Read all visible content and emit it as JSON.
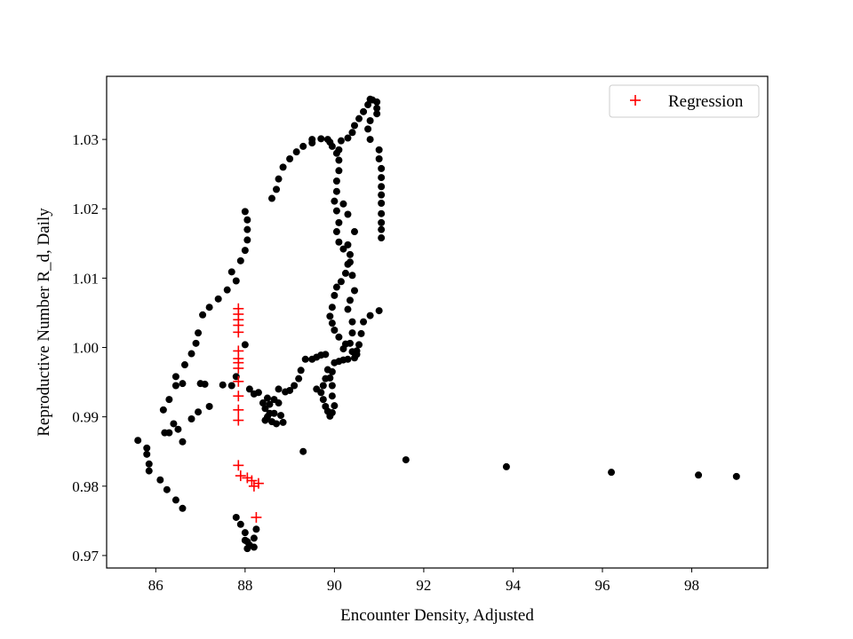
{
  "chart_data": {
    "type": "scatter",
    "xlabel": "Encounter Density, Adjusted",
    "ylabel": "Reproductive Number R_d, Daily",
    "xlim": [
      84.9,
      99.7
    ],
    "ylim": [
      0.9682,
      1.0391
    ],
    "x_ticks": [
      {
        "value": 86,
        "label": "86"
      },
      {
        "value": 88,
        "label": "88"
      },
      {
        "value": 90,
        "label": "90"
      },
      {
        "value": 92,
        "label": "92"
      },
      {
        "value": 94,
        "label": "94"
      },
      {
        "value": 96,
        "label": "96"
      },
      {
        "value": 98,
        "label": "98"
      }
    ],
    "y_ticks": [
      {
        "value": 0.97,
        "label": "0.97"
      },
      {
        "value": 0.98,
        "label": "0.98"
      },
      {
        "value": 0.99,
        "label": "0.99"
      },
      {
        "value": 1.0,
        "label": "1.00"
      },
      {
        "value": 1.01,
        "label": "1.01"
      },
      {
        "value": 1.02,
        "label": "1.02"
      },
      {
        "value": 1.03,
        "label": "1.03"
      }
    ],
    "grid": false,
    "legend_position": "top-right",
    "series": [
      {
        "marker": "dot",
        "color": "#000000",
        "points": [
          [
            85.6,
            0.9866
          ],
          [
            85.8,
            0.9855
          ],
          [
            85.8,
            0.9846
          ],
          [
            85.85,
            0.9832
          ],
          [
            85.85,
            0.9822
          ],
          [
            86.1,
            0.9809
          ],
          [
            86.25,
            0.9795
          ],
          [
            86.45,
            0.978
          ],
          [
            86.6,
            0.9768
          ],
          [
            86.6,
            0.9864
          ],
          [
            86.5,
            0.9882
          ],
          [
            86.4,
            0.989
          ],
          [
            86.3,
            0.9877
          ],
          [
            86.2,
            0.9877
          ],
          [
            86.17,
            0.991
          ],
          [
            86.3,
            0.9925
          ],
          [
            86.45,
            0.9945
          ],
          [
            86.6,
            0.9948
          ],
          [
            86.45,
            0.9958
          ],
          [
            86.65,
            0.9975
          ],
          [
            86.8,
            0.9991
          ],
          [
            86.9,
            1.0006
          ],
          [
            86.95,
            1.0021
          ],
          [
            87.05,
            1.0047
          ],
          [
            87.2,
            1.0058
          ],
          [
            87.4,
            1.007
          ],
          [
            87.6,
            1.0083
          ],
          [
            87.7,
            1.0109
          ],
          [
            87.8,
            1.0096
          ],
          [
            87.9,
            1.0125
          ],
          [
            88.0,
            1.014
          ],
          [
            88.05,
            1.0155
          ],
          [
            88.05,
            1.017
          ],
          [
            88.05,
            1.0184
          ],
          [
            88.0,
            1.0196
          ],
          [
            86.8,
            0.9897
          ],
          [
            86.95,
            0.9907
          ],
          [
            87.2,
            0.9915
          ],
          [
            87.0,
            0.9948
          ],
          [
            87.1,
            0.9947
          ],
          [
            87.5,
            0.9946
          ],
          [
            87.7,
            0.9945
          ],
          [
            87.8,
            0.9958
          ],
          [
            88.0,
            1.0004
          ],
          [
            88.1,
            0.994
          ],
          [
            88.2,
            0.9933
          ],
          [
            88.3,
            0.9935
          ],
          [
            88.4,
            0.992
          ],
          [
            88.45,
            0.9912
          ],
          [
            88.5,
            0.99
          ],
          [
            88.45,
            0.9895
          ],
          [
            88.55,
            0.9905
          ],
          [
            88.6,
            0.9893
          ],
          [
            88.65,
            0.9905
          ],
          [
            88.7,
            0.989
          ],
          [
            88.8,
            0.9902
          ],
          [
            88.85,
            0.9892
          ],
          [
            88.75,
            0.992
          ],
          [
            88.65,
            0.9925
          ],
          [
            88.55,
            0.9918
          ],
          [
            88.5,
            0.9927
          ],
          [
            88.75,
            0.994
          ],
          [
            88.9,
            0.9936
          ],
          [
            89.0,
            0.9938
          ],
          [
            89.1,
            0.9945
          ],
          [
            89.2,
            0.9955
          ],
          [
            89.25,
            0.9967
          ],
          [
            89.35,
            0.9983
          ],
          [
            89.5,
            0.9983
          ],
          [
            89.6,
            0.9986
          ],
          [
            89.7,
            0.9989
          ],
          [
            89.8,
            0.999
          ],
          [
            89.85,
            0.9968
          ],
          [
            89.8,
            0.9955
          ],
          [
            89.75,
            0.9945
          ],
          [
            89.7,
            0.9935
          ],
          [
            89.75,
            0.9925
          ],
          [
            89.8,
            0.9915
          ],
          [
            89.85,
            0.9908
          ],
          [
            89.9,
            0.9901
          ],
          [
            89.95,
            0.9906
          ],
          [
            90.0,
            0.9916
          ],
          [
            89.95,
            0.993
          ],
          [
            89.95,
            0.9945
          ],
          [
            89.6,
            0.994
          ],
          [
            89.9,
            0.9956
          ],
          [
            89.95,
            0.9965
          ],
          [
            90.0,
            0.9978
          ],
          [
            90.1,
            0.998
          ],
          [
            90.2,
            0.9982
          ],
          [
            90.3,
            0.9983
          ],
          [
            90.45,
            0.9985
          ],
          [
            90.5,
            0.999
          ],
          [
            90.4,
            0.9994
          ],
          [
            90.35,
            1.0006
          ],
          [
            90.25,
            1.0005
          ],
          [
            90.2,
            0.9998
          ],
          [
            90.1,
            1.0015
          ],
          [
            90.0,
            1.0025
          ],
          [
            89.95,
            1.0035
          ],
          [
            89.9,
            1.0045
          ],
          [
            89.95,
            1.0058
          ],
          [
            90.0,
            1.0075
          ],
          [
            90.05,
            1.0087
          ],
          [
            90.15,
            1.0095
          ],
          [
            90.25,
            1.0107
          ],
          [
            90.3,
            1.012
          ],
          [
            90.35,
            1.0134
          ],
          [
            90.2,
            1.0142
          ],
          [
            90.1,
            1.0152
          ],
          [
            90.05,
            1.0167
          ],
          [
            90.1,
            1.018
          ],
          [
            90.05,
            1.0197
          ],
          [
            90.0,
            1.0211
          ],
          [
            90.05,
            1.0225
          ],
          [
            90.05,
            1.024
          ],
          [
            90.1,
            1.0255
          ],
          [
            90.1,
            1.027
          ],
          [
            90.05,
            1.028
          ],
          [
            89.95,
            1.029
          ],
          [
            89.9,
            1.0296
          ],
          [
            89.85,
            1.03
          ],
          [
            89.7,
            1.0301
          ],
          [
            89.5,
            1.03
          ],
          [
            89.5,
            1.0295
          ],
          [
            89.3,
            1.029
          ],
          [
            89.15,
            1.0282
          ],
          [
            89.0,
            1.0272
          ],
          [
            88.85,
            1.026
          ],
          [
            88.75,
            1.0243
          ],
          [
            88.7,
            1.0228
          ],
          [
            88.6,
            1.0215
          ],
          [
            90.1,
            1.0285
          ],
          [
            90.15,
            1.0298
          ],
          [
            90.3,
            1.0302
          ],
          [
            90.4,
            1.031
          ],
          [
            90.45,
            1.032
          ],
          [
            90.55,
            1.033
          ],
          [
            90.65,
            1.034
          ],
          [
            90.75,
            1.035
          ],
          [
            90.8,
            1.0358
          ],
          [
            90.85,
            1.0357
          ],
          [
            90.95,
            1.0354
          ],
          [
            90.95,
            1.0345
          ],
          [
            90.95,
            1.0337
          ],
          [
            90.8,
            1.0327
          ],
          [
            90.75,
            1.0315
          ],
          [
            90.8,
            1.03
          ],
          [
            91.0,
            1.0285
          ],
          [
            91.0,
            1.0272
          ],
          [
            91.05,
            1.0258
          ],
          [
            91.05,
            1.0245
          ],
          [
            91.05,
            1.0232
          ],
          [
            91.05,
            1.022
          ],
          [
            91.05,
            1.0208
          ],
          [
            91.05,
            1.0193
          ],
          [
            91.05,
            1.018
          ],
          [
            91.05,
            1.017
          ],
          [
            91.05,
            1.0158
          ],
          [
            90.2,
            1.0207
          ],
          [
            90.3,
            1.0192
          ],
          [
            90.45,
            1.0167
          ],
          [
            90.3,
            1.0148
          ],
          [
            90.35,
            1.0123
          ],
          [
            90.4,
            1.0104
          ],
          [
            90.45,
            1.0082
          ],
          [
            90.35,
            1.0068
          ],
          [
            90.3,
            1.0055
          ],
          [
            90.4,
            1.0037
          ],
          [
            90.4,
            1.0021
          ],
          [
            90.5,
            0.9995
          ],
          [
            90.55,
            1.0004
          ],
          [
            90.6,
            1.002
          ],
          [
            90.65,
            1.0037
          ],
          [
            90.8,
            1.0046
          ],
          [
            91.0,
            1.0053
          ],
          [
            88.25,
            0.9738
          ],
          [
            88.2,
            0.9725
          ],
          [
            88.1,
            0.9715
          ],
          [
            88.05,
            0.972
          ],
          [
            87.9,
            0.9745
          ],
          [
            88.0,
            0.9733
          ],
          [
            88.0,
            0.9722
          ],
          [
            88.05,
            0.971
          ],
          [
            88.2,
            0.9712
          ],
          [
            87.8,
            0.9755
          ],
          [
            89.3,
            0.985
          ],
          [
            91.6,
            0.9838
          ],
          [
            93.85,
            0.9828
          ],
          [
            96.2,
            0.982
          ],
          [
            98.15,
            0.9816
          ],
          [
            99.0,
            0.9814
          ]
        ]
      },
      {
        "name": "Regression",
        "marker": "plus",
        "color": "#ff0000",
        "points": [
          [
            87.85,
            1.0056
          ],
          [
            87.85,
            1.0048
          ],
          [
            87.85,
            1.004
          ],
          [
            87.85,
            1.0032
          ],
          [
            87.85,
            1.0022
          ],
          [
            87.85,
            0.9995
          ],
          [
            87.85,
            0.9984
          ],
          [
            87.85,
            0.9978
          ],
          [
            87.85,
            0.997
          ],
          [
            87.85,
            0.9951
          ],
          [
            87.85,
            0.993
          ],
          [
            87.85,
            0.991
          ],
          [
            87.85,
            0.9895
          ],
          [
            87.85,
            0.983
          ],
          [
            87.9,
            0.9815
          ],
          [
            88.05,
            0.9812
          ],
          [
            88.15,
            0.9808
          ],
          [
            88.2,
            0.98
          ],
          [
            88.3,
            0.9804
          ],
          [
            88.25,
            0.9755
          ]
        ]
      }
    ]
  }
}
